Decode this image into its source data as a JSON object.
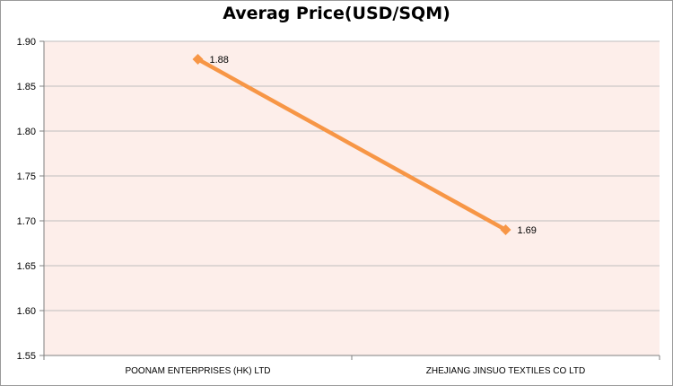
{
  "chart_data": {
    "type": "line",
    "title": "Averag Price(USD/SQM)",
    "categories": [
      "POONAM ENTERPRISES  (HK) LTD",
      "ZHEJIANG JINSUO  TEXTILES  CO LTD"
    ],
    "series": [
      {
        "values": [
          1.88,
          1.69
        ],
        "labels": [
          "1.88",
          "1.69"
        ]
      }
    ],
    "yticks": [
      "1.90",
      "1.85",
      "1.80",
      "1.75",
      "1.70",
      "1.65",
      "1.60",
      "1.55"
    ],
    "ylim": [
      1.55,
      1.9
    ],
    "xlabel": "",
    "ylabel": "",
    "grid": true,
    "colors": {
      "line": "#F79646",
      "plot_bg": "#FDEEEA",
      "grid": "#BFBFBF"
    }
  }
}
